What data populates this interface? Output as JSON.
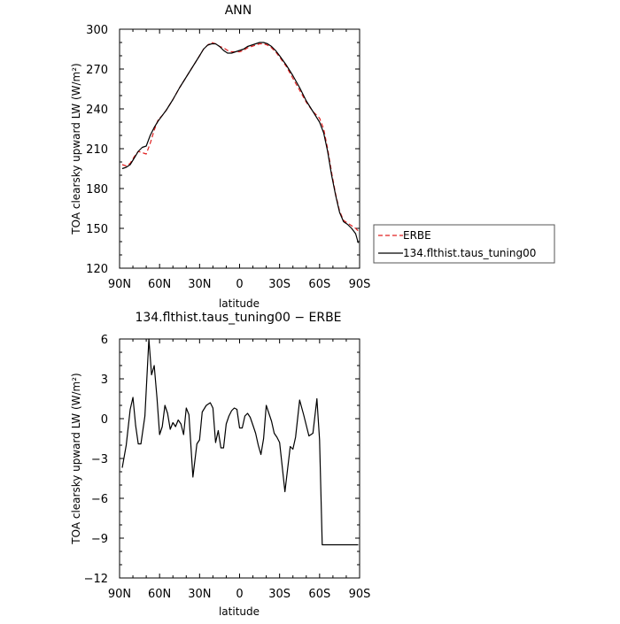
{
  "chart_data": [
    {
      "type": "line",
      "title": "ANN",
      "xlabel": "latitude",
      "ylabel": "TOA clearsky upward LW (W/m²)",
      "xlim": [
        90,
        -90
      ],
      "ylim": [
        120,
        300
      ],
      "x_ticks": [
        {
          "v": 90,
          "label": "90N"
        },
        {
          "v": 60,
          "label": "60N"
        },
        {
          "v": 30,
          "label": "30N"
        },
        {
          "v": 0,
          "label": "0"
        },
        {
          "v": -30,
          "label": "30S"
        },
        {
          "v": -60,
          "label": "60S"
        },
        {
          "v": -90,
          "label": "90S"
        }
      ],
      "y_ticks": [
        {
          "v": 120,
          "label": "120"
        },
        {
          "v": 150,
          "label": "150"
        },
        {
          "v": 180,
          "label": "180"
        },
        {
          "v": 210,
          "label": "210"
        },
        {
          "v": 240,
          "label": "240"
        },
        {
          "v": 270,
          "label": "270"
        },
        {
          "v": 300,
          "label": "300"
        }
      ],
      "legend": {
        "placement": "outside-right"
      },
      "series": [
        {
          "name": "ERBE",
          "color": "#e02020",
          "dash": "dashed",
          "x": [
            88,
            85,
            82,
            79,
            76,
            73,
            70,
            67,
            64,
            61,
            58,
            55,
            50,
            45,
            40,
            35,
            30,
            27,
            24,
            21,
            18,
            15,
            12,
            9,
            6,
            3,
            0,
            -3,
            -6,
            -9,
            -12,
            -15,
            -18,
            -21,
            -24,
            -27,
            -30,
            -35,
            -40,
            -45,
            -50,
            -55,
            -60,
            -63,
            -66,
            -69,
            -72,
            -75,
            -78,
            -81,
            -84,
            -87,
            -89
          ],
          "values": [
            198,
            197,
            199,
            204,
            208,
            207,
            206,
            214,
            224,
            232,
            235,
            239,
            247,
            256,
            264,
            272,
            280,
            285,
            288,
            290,
            289,
            287,
            286,
            284,
            283,
            283,
            283,
            284,
            286,
            287,
            288,
            289,
            289,
            288,
            286,
            283,
            279,
            272,
            263,
            254,
            245,
            238,
            233,
            225,
            210,
            192,
            176,
            163,
            156,
            154,
            152,
            150,
            148
          ]
        },
        {
          "name": "134.flthist.taus_tuning00",
          "color": "#000000",
          "dash": "solid",
          "x": [
            88,
            85,
            82,
            79,
            76,
            73,
            70,
            67,
            64,
            61,
            58,
            55,
            50,
            45,
            40,
            35,
            30,
            27,
            24,
            21,
            18,
            15,
            12,
            9,
            6,
            3,
            0,
            -3,
            -6,
            -9,
            -12,
            -15,
            -18,
            -21,
            -24,
            -27,
            -30,
            -35,
            -40,
            -45,
            -50,
            -55,
            -60,
            -63,
            -66,
            -69,
            -72,
            -75,
            -78,
            -81,
            -84,
            -87,
            -89
          ],
          "values": [
            195,
            196,
            198,
            203,
            208,
            211,
            212,
            220,
            226,
            231,
            235,
            239,
            247,
            256,
            264,
            272,
            280,
            285,
            288,
            289,
            289,
            287,
            284,
            282,
            282,
            283,
            284,
            285,
            287,
            288,
            289,
            290,
            290,
            289,
            287,
            284,
            280,
            273,
            265,
            256,
            246,
            238,
            230,
            222,
            208,
            190,
            175,
            162,
            155,
            153,
            150,
            146,
            139
          ]
        }
      ]
    },
    {
      "type": "line",
      "title": "134.flthist.taus_tuning00 − ERBE",
      "xlabel": "latitude",
      "ylabel": "TOA clearsky upward LW (W/m²)",
      "xlim": [
        90,
        -90
      ],
      "ylim": [
        -12,
        6
      ],
      "x_ticks": [
        {
          "v": 90,
          "label": "90N"
        },
        {
          "v": 60,
          "label": "60N"
        },
        {
          "v": 30,
          "label": "30N"
        },
        {
          "v": 0,
          "label": "0"
        },
        {
          "v": -30,
          "label": "30S"
        },
        {
          "v": -60,
          "label": "60S"
        },
        {
          "v": -90,
          "label": "90S"
        }
      ],
      "y_ticks": [
        {
          "v": -12,
          "label": "−12"
        },
        {
          "v": -9,
          "label": "−9"
        },
        {
          "v": -6,
          "label": "−6"
        },
        {
          "v": -3,
          "label": "−3"
        },
        {
          "v": 0,
          "label": "0"
        },
        {
          "v": 3,
          "label": "3"
        },
        {
          "v": 6,
          "label": "6"
        }
      ],
      "series": [
        {
          "color": "#000000",
          "dash": "solid",
          "x": [
            88,
            85,
            82,
            80,
            78,
            76,
            74,
            71,
            68,
            66,
            64,
            62,
            60,
            58,
            56,
            54,
            52,
            50,
            48,
            46,
            44,
            42,
            40,
            38,
            35,
            32,
            30,
            28,
            25,
            22,
            20,
            18,
            16,
            14,
            12,
            10,
            8,
            6,
            4,
            2,
            0,
            -2,
            -4,
            -6,
            -8,
            -10,
            -12,
            -14,
            -16,
            -18,
            -20,
            -22,
            -24,
            -26,
            -28,
            -30,
            -34,
            -38,
            -40,
            -42,
            -45,
            -48,
            -52,
            -55,
            -58,
            -60,
            -62,
            -64,
            -66,
            -68,
            -70,
            -72,
            -74,
            -76,
            -78,
            -80,
            -82,
            -84,
            -86,
            -88,
            -89
          ],
          "values": [
            -3.7,
            -2,
            0.7,
            1.6,
            -0.5,
            -1.9,
            -1.9,
            0.2,
            6,
            3.3,
            4,
            1.6,
            -1.2,
            -0.6,
            1,
            0.4,
            -0.8,
            -0.3,
            -0.6,
            -0.1,
            -0.4,
            -1.2,
            0.8,
            0.3,
            -4.4,
            -1.9,
            -1.6,
            0.5,
            1.0,
            1.2,
            0.8,
            -1.8,
            -0.9,
            -2.2,
            -2.2,
            -0.4,
            0.2,
            0.6,
            0.8,
            0.7,
            -0.7,
            -0.7,
            0.2,
            0.4,
            0.1,
            -0.5,
            -1.1,
            -2,
            -2.7,
            -1.5,
            1,
            0.4,
            -0.2,
            -1.1,
            -1.4,
            -1.8,
            -5.5,
            -2.1,
            -2.3,
            -1.4,
            1.4,
            0.3,
            -1.3,
            -1.1,
            1.5,
            -1.6,
            -9.5,
            -9.5,
            -9.5,
            -9.5,
            -9.5,
            -9.5,
            -9.5,
            -9.5,
            -9.5,
            -9.5,
            -9.5,
            -9.5,
            -9.5,
            -9.5,
            -9.5
          ]
        }
      ]
    }
  ]
}
